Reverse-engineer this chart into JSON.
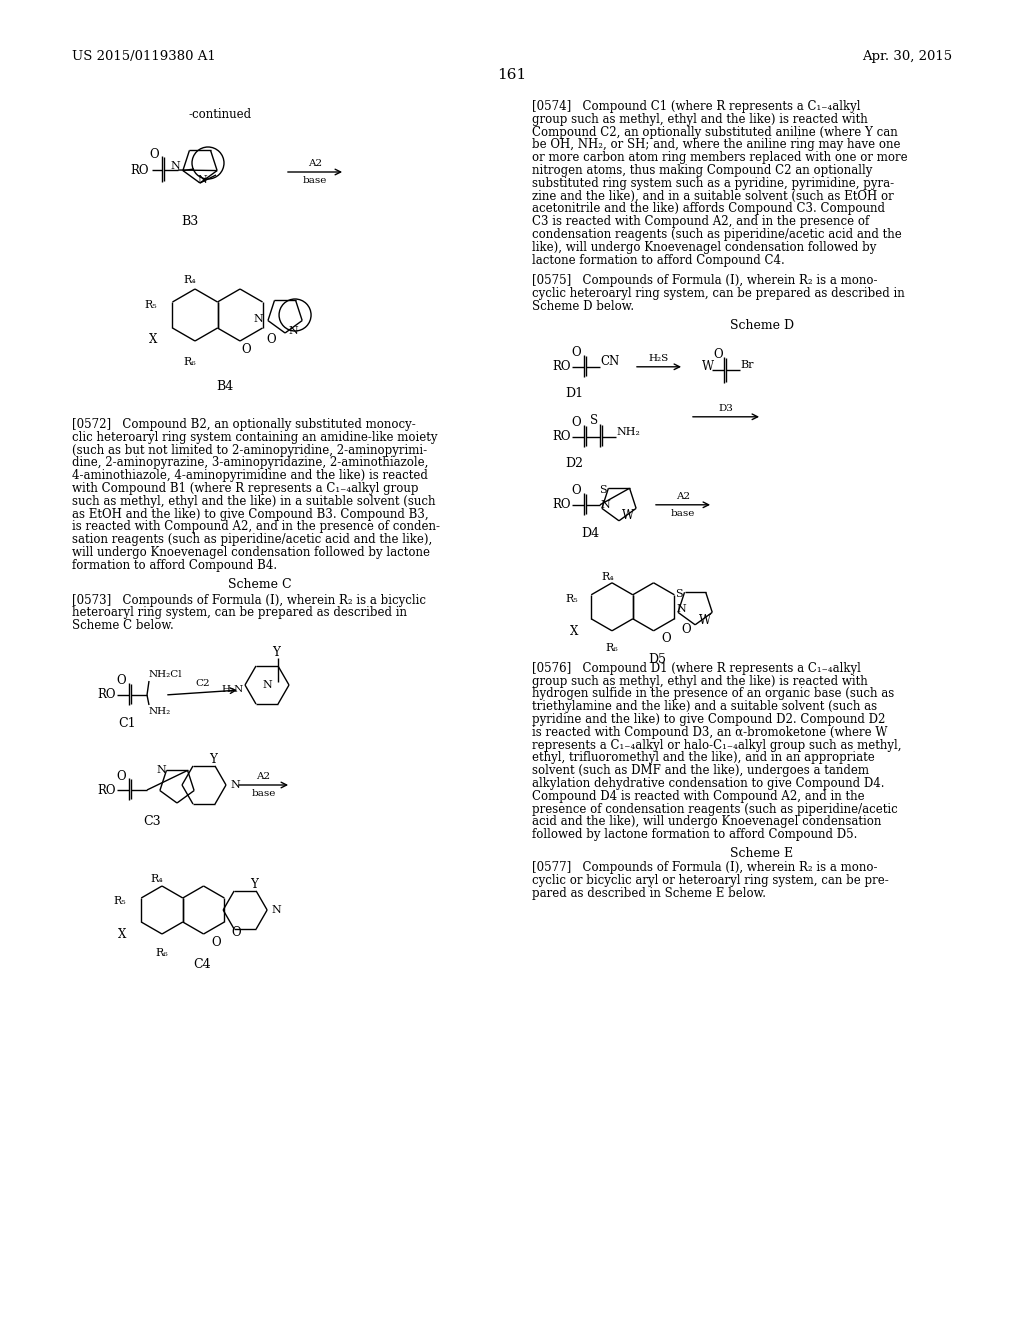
{
  "background_color": "#ffffff",
  "page_number": "161",
  "header_left": "US 2015/0119380 A1",
  "header_right": "Apr. 30, 2015",
  "font_family": "DejaVu Serif",
  "body_text_size": 8.5,
  "header_text_size": 9.5,
  "page_num_size": 11,
  "p0574": "[0574]   Compound C1 (where R represents a C₁₋₄alkyl group such as methyl, ethyl and the like) is reacted with Compound C2, an optionally substituted aniline (where Y can be OH, NH₂, or SH; and, where the aniline ring may have one or more carbon atom ring members replaced with one or more nitrogen atoms, thus making Compound C2 an optionally substituted ring system such as a pyridine, pyrimidine, pyra-zine and the like), and in a suitable solvent (such as EtOH or acetonitrile and the like) affords Compound C3. Compound C3 is reacted with Compound A2, and in the presence of condensation reagents (such as piperidine/acetic acid and the like), will undergo Knoevenagel condensation followed by lactone formation to afford Compound C4.",
  "p0575": "[0575]   Compounds of Formula (I), wherein R₂ is a mono-cyclic heteroaryl ring system, can be prepared as described in Scheme D below.",
  "scheme_d": "Scheme D",
  "p0572": "[0572]   Compound B2, an optionally substituted monocy-clic heteroaryl ring system containing an amidine-like moiety (such as but not limited to 2-aminopyridine, 2-aminopyrimi-dine, 2-aminopyrazine, 3-aminopyridazine, 2-aminothiazole, 4-aminothiazole, 4-aminopyrimidine and the like) is reacted with Compound B1 (where R represents a C₁₋₄alkyl group such as methyl, ethyl and the like) in a suitable solvent (such as EtOH and the like) to give Compound B3. Compound B3, is reacted with Compound A2, and in the presence of conden-sation reagents (such as piperidine/acetic acid and the like), will undergo Knoevenagel condensation followed by lactone formation to afford Compound B4.",
  "scheme_c": "Scheme C",
  "p0573": "[0573]   Compounds of Formula (I), wherein R₂ is a bicyclic heteroaryl ring system, can be prepared as described in Scheme C below.",
  "p0576": "[0576]   Compound D1 (where R represents a C₁₋₄alkyl group such as methyl, ethyl and the like) is reacted with hydrogen sulfide in the presence of an organic base (such as triethylamine and the like) and a suitable solvent (such as pyridine and the like) to give Compound D2. Compound D2 is reacted with Compound D3, an α-bromoketone (where W represents a C₁₋₄alkyl or halo-C₁₋₄alkyl group such as methyl, ethyl, trifluoromethyl and the like), and in an appropriate solvent (such as DMF and the like), undergoes a tandem alkylation dehydrative condensation to give Compound D4. Compound D4 is reacted with Compound A2, and in the presence of condensation reagents (such as piperidine/acetic acid and the like), will undergo Knoevenagel condensation followed by lactone formation to afford Compound D5.",
  "scheme_e": "Scheme E",
  "p0577": "[0577]   Compounds of Formula (I), wherein R₂ is a mono-cyclic or bicyclic aryl or heteroaryl ring system, can be pre-pared as described in Scheme E below."
}
